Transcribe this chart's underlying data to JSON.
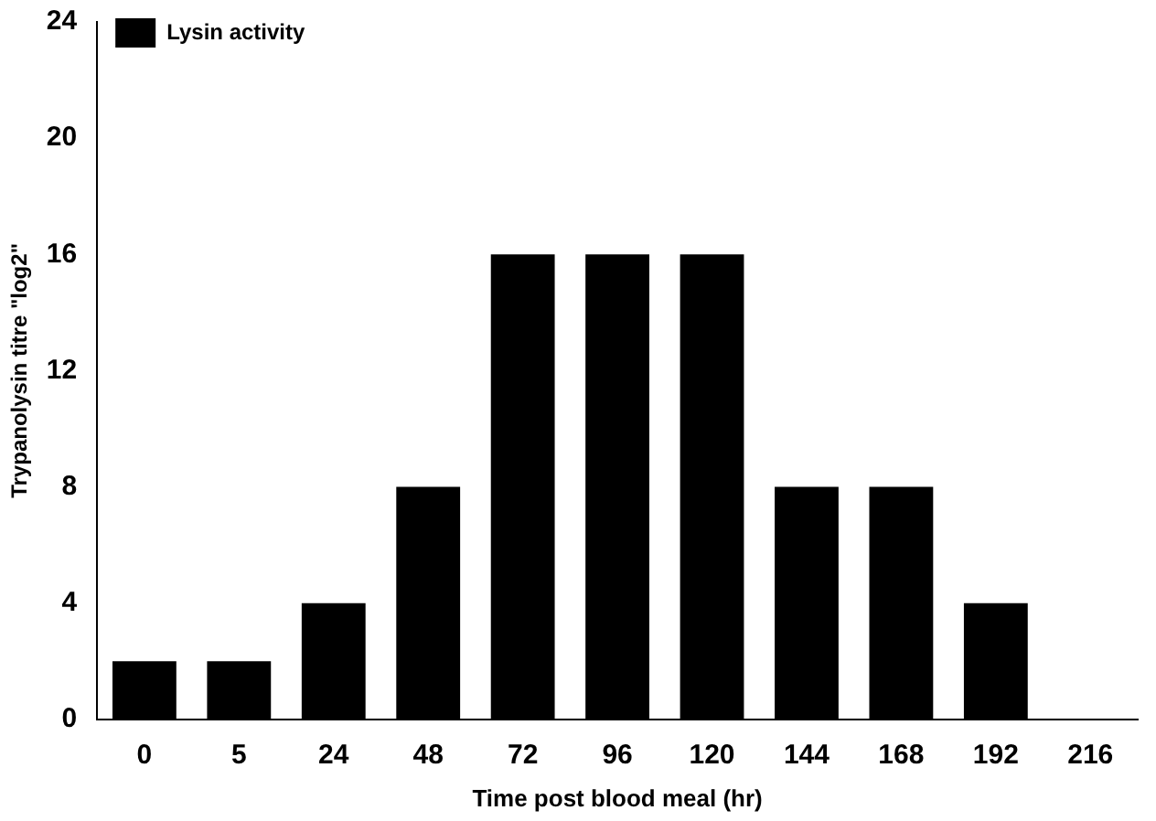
{
  "chart_data": {
    "type": "bar",
    "xlabel": "Time post blood meal (hr)",
    "ylabel": "Trypanolysin titre \"log2\"",
    "categories": [
      "0",
      "5",
      "24",
      "48",
      "72",
      "96",
      "120",
      "144",
      "168",
      "192",
      "216"
    ],
    "series": [
      {
        "name": "Lysin activity",
        "color": "#000000",
        "values": [
          2,
          2,
          4,
          8,
          16,
          16,
          16,
          8,
          8,
          4,
          0
        ]
      }
    ],
    "ylim": [
      0,
      24
    ],
    "yticks": [
      0,
      4,
      8,
      12,
      16,
      20,
      24
    ],
    "grid": false,
    "legend": "top left"
  }
}
